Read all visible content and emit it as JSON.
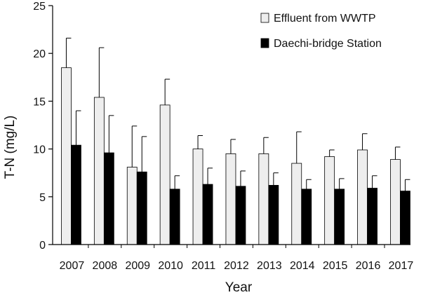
{
  "chart_data": {
    "type": "bar",
    "categories": [
      "2007",
      "2008",
      "2009",
      "2010",
      "2011",
      "2012",
      "2013",
      "2014",
      "2015",
      "2016",
      "2017"
    ],
    "series": [
      {
        "name": "Effluent from WWTP",
        "values": [
          18.5,
          15.4,
          8.1,
          14.6,
          10.0,
          9.5,
          9.5,
          8.5,
          9.2,
          9.9,
          8.9
        ],
        "error": [
          3.1,
          5.2,
          4.3,
          2.7,
          1.4,
          1.5,
          1.7,
          3.3,
          0.7,
          1.7,
          1.3
        ],
        "color": "#eeeeee"
      },
      {
        "name": "Daechi-bridge Station",
        "values": [
          10.4,
          9.6,
          7.6,
          5.8,
          6.3,
          6.1,
          6.2,
          5.8,
          5.8,
          5.9,
          5.6
        ],
        "error": [
          3.6,
          3.9,
          3.7,
          1.4,
          1.7,
          1.6,
          1.3,
          1.0,
          1.1,
          1.3,
          1.2
        ],
        "color": "#000000"
      }
    ],
    "xlabel": "Year",
    "ylabel": "T-N (mg/L)",
    "ylim": [
      0,
      25
    ],
    "yticks": [
      "0",
      "5",
      "10",
      "15",
      "20",
      "25"
    ],
    "grid": false,
    "legend_position": "top-right"
  }
}
